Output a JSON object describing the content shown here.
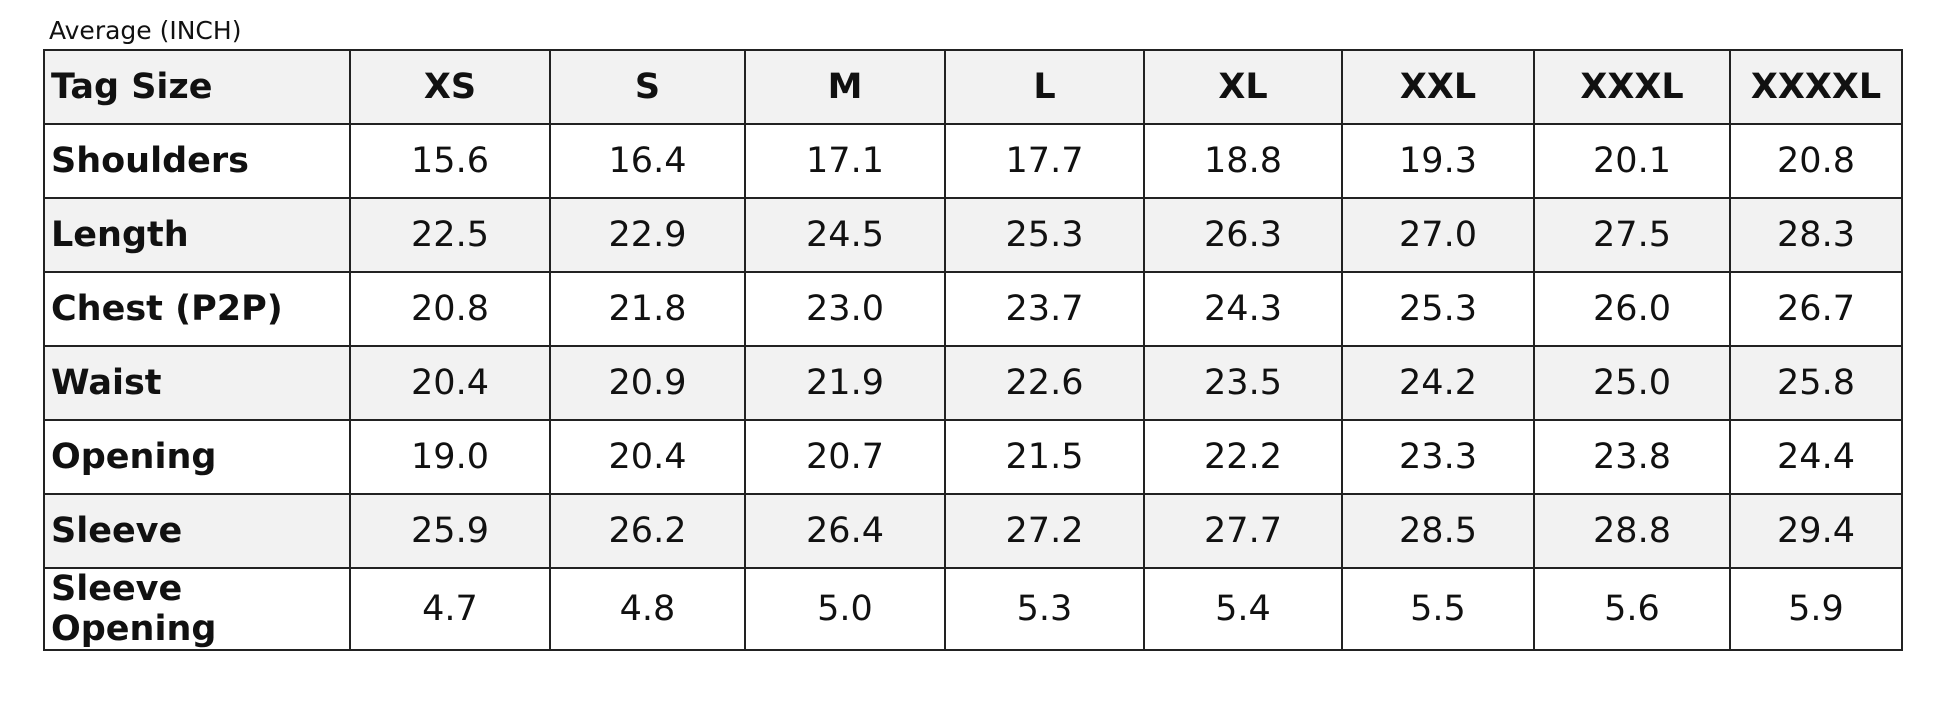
{
  "caption": "Average (INCH)",
  "table": {
    "header": [
      "Tag Size",
      "XS",
      "S",
      "M",
      "L",
      "XL",
      "XXL",
      "XXXL",
      "XXXXL"
    ],
    "rows": [
      [
        "Shoulders",
        "15.6",
        "16.4",
        "17.1",
        "17.7",
        "18.8",
        "19.3",
        "20.1",
        "20.8"
      ],
      [
        "Length",
        "22.5",
        "22.9",
        "24.5",
        "25.3",
        "26.3",
        "27.0",
        "27.5",
        "28.3"
      ],
      [
        "Chest (P2P)",
        "20.8",
        "21.8",
        "23.0",
        "23.7",
        "24.3",
        "25.3",
        "26.0",
        "26.7"
      ],
      [
        "Waist",
        "20.4",
        "20.9",
        "21.9",
        "22.6",
        "23.5",
        "24.2",
        "25.0",
        "25.8"
      ],
      [
        "Opening",
        "19.0",
        "20.4",
        "20.7",
        "21.5",
        "22.2",
        "23.3",
        "23.8",
        "24.4"
      ],
      [
        "Sleeve",
        "25.9",
        "26.2",
        "26.4",
        "27.2",
        "27.7",
        "28.5",
        "28.8",
        "29.4"
      ],
      [
        "Sleeve Opening",
        "4.7",
        "4.8",
        "5.0",
        "5.3",
        "5.4",
        "5.5",
        "5.6",
        "5.9"
      ]
    ]
  }
}
